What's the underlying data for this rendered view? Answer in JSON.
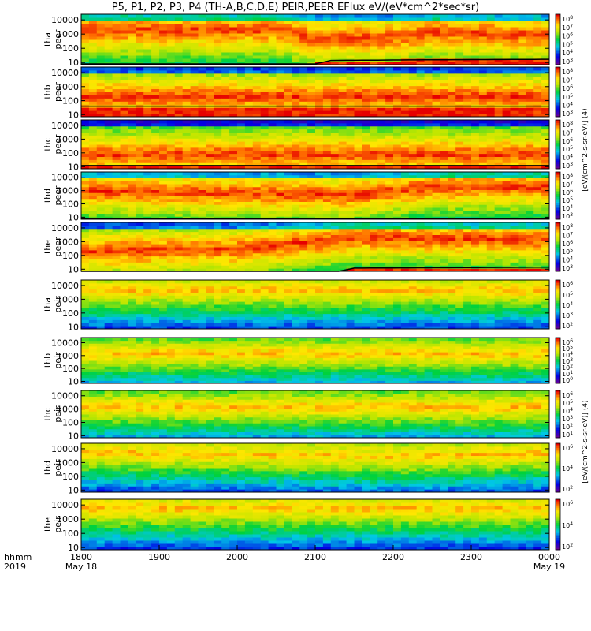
{
  "chart_data": {
    "type": "heatmap",
    "title": "P5, P1, P2, P3, P4 (TH-A,B,C,D,E) PEIR,PEER EFlux eV/(eV*cm^2*sec*sr)",
    "time_axis": {
      "label_top": "hhmm",
      "label_bottom": "2019",
      "ticks": [
        "1800",
        "1900",
        "2000",
        "2100",
        "2200",
        "2300",
        "0000"
      ],
      "dates": [
        "May 18",
        "",
        "",
        "",
        "",
        "",
        "May 19"
      ],
      "range": [
        "2019-05-18 18:00",
        "2019-05-19 00:00"
      ]
    },
    "y_axis": {
      "scale": "log",
      "ticks": [
        "10",
        "100",
        "1000",
        "10000"
      ],
      "range_eV": [
        7,
        25000
      ]
    },
    "colorbar": {
      "scale": "log",
      "colormap": "rainbow (purple-blue-green-yellow-red)",
      "label_electron": "[eV/(cm^2-s-sr-eV)] (4)",
      "label_ion": "[eV/(cm^2-s-sr-eV)] (4)"
    },
    "panels": [
      {
        "name": "tha peer",
        "line1": "tha",
        "line2": "peer",
        "cbar_ticks": [
          "10^8",
          "10^7",
          "10^6",
          "10^5",
          "10^4",
          "10^3"
        ],
        "low_energy_cutoff_eV": [
          [
            18.0,
            8
          ],
          [
            21.0,
            8
          ],
          [
            21.2,
            14
          ],
          [
            22.0,
            15
          ],
          [
            24.0,
            17
          ]
        ],
        "peak_energy_eV": [
          [
            18.0,
            2000
          ],
          [
            20.5,
            2000
          ],
          [
            21.0,
            500
          ],
          [
            22.0,
            600
          ],
          [
            22.5,
            1500
          ],
          [
            24.0,
            800
          ]
        ]
      },
      {
        "name": "thb peer",
        "line1": "thb",
        "line2": "peer",
        "cbar_ticks": [
          "10^8",
          "10^7",
          "10^6",
          "10^5",
          "10^4",
          "10^3"
        ],
        "low_energy_cutoff_eV": [
          [
            18.0,
            40
          ],
          [
            24.0,
            40
          ]
        ],
        "peak_energy_eV": [
          [
            18.0,
            200
          ],
          [
            24.0,
            200
          ]
        ]
      },
      {
        "name": "thc peer",
        "line1": "thc",
        "line2": "peer",
        "cbar_ticks": [
          "10^8",
          "10^7",
          "10^6",
          "10^5",
          "10^4",
          "10^3"
        ],
        "low_energy_cutoff_eV": [
          [
            18.0,
            12
          ],
          [
            24.0,
            12
          ]
        ],
        "peak_energy_eV": [
          [
            18.0,
            80
          ],
          [
            24.0,
            80
          ]
        ]
      },
      {
        "name": "thd peer",
        "line1": "thd",
        "line2": "peer",
        "cbar_ticks": [
          "10^8",
          "10^7",
          "10^6",
          "10^5",
          "10^4",
          "10^3"
        ],
        "low_energy_cutoff_eV": [
          [
            18.0,
            8
          ],
          [
            24.0,
            8
          ]
        ],
        "peak_energy_eV": [
          [
            18.0,
            1000
          ],
          [
            21.5,
            500
          ],
          [
            22.5,
            2000
          ],
          [
            24.0,
            2000
          ]
        ]
      },
      {
        "name": "the peer",
        "line1": "the",
        "line2": "peer",
        "cbar_ticks": [
          "10^8",
          "10^7",
          "10^6",
          "10^5",
          "10^4",
          "10^3"
        ],
        "low_energy_cutoff_eV": [
          [
            18.0,
            7
          ],
          [
            21.3,
            7
          ],
          [
            21.5,
            12
          ],
          [
            24.0,
            14
          ]
        ],
        "peak_energy_eV": [
          [
            18.0,
            200
          ],
          [
            20.0,
            300
          ],
          [
            21.5,
            2000
          ],
          [
            24.0,
            1500
          ]
        ]
      },
      {
        "name": "tha peir",
        "line1": "tha",
        "line2": "peir",
        "cbar_ticks": [
          "10^6",
          "10^5",
          "10^4",
          "10^3",
          "10^2"
        ],
        "low_energy_cutoff_eV": [
          [
            18.0,
            8
          ],
          [
            24.0,
            8
          ]
        ],
        "peak_energy_eV": [
          [
            18.0,
            5000
          ],
          [
            24.0,
            5000
          ]
        ]
      },
      {
        "name": "thb peir",
        "line1": "thb",
        "line2": "peir",
        "cbar_ticks": [
          "10^6",
          "10^5",
          "10^4",
          "10^3",
          "10^2",
          "10^1",
          "10^0"
        ],
        "low_energy_cutoff_eV": [
          [
            18.0,
            8
          ],
          [
            24.0,
            8
          ]
        ],
        "peak_energy_eV": [
          [
            18.0,
            1500
          ],
          [
            24.0,
            1500
          ]
        ]
      },
      {
        "name": "thc peir",
        "line1": "thc",
        "line2": "peir",
        "cbar_ticks": [
          "10^6",
          "10^5",
          "10^4",
          "10^3",
          "10^2",
          "10^1"
        ],
        "low_energy_cutoff_eV": [
          [
            18.0,
            8
          ],
          [
            24.0,
            8
          ]
        ],
        "peak_energy_eV": [
          [
            18.0,
            1500
          ],
          [
            24.0,
            1500
          ]
        ]
      },
      {
        "name": "thd peir",
        "line1": "thd",
        "line2": "peir",
        "cbar_ticks": [
          "10^6",
          "10^4",
          "10^2"
        ],
        "low_energy_cutoff_eV": [
          [
            18.0,
            8
          ],
          [
            24.0,
            8
          ]
        ],
        "peak_energy_eV": [
          [
            18.0,
            6000
          ],
          [
            20.5,
            4000
          ],
          [
            22.0,
            3000
          ],
          [
            24.0,
            5000
          ]
        ]
      },
      {
        "name": "the peir",
        "line1": "the",
        "line2": "peir",
        "cbar_ticks": [
          "10^6",
          "10^4",
          "10^2"
        ],
        "low_energy_cutoff_eV": [
          [
            18.0,
            8
          ],
          [
            24.0,
            8
          ]
        ],
        "peak_energy_eV": [
          [
            18.0,
            6000
          ],
          [
            24.0,
            6000
          ]
        ]
      }
    ]
  }
}
